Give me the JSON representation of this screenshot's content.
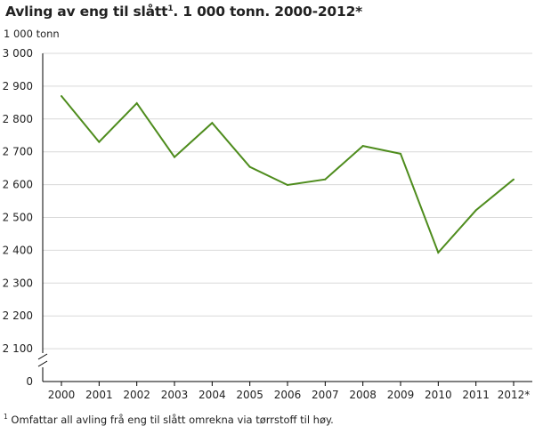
{
  "chart_data": {
    "type": "line",
    "title": "Avling av eng til slått",
    "title_sup": "1",
    "title_rest": ". 1 000 tonn. 2000-2012*",
    "ylabel": "1 000 tonn",
    "x": [
      "2000",
      "2001",
      "2002",
      "2003",
      "2004",
      "2005",
      "2006",
      "2007",
      "2008",
      "2009",
      "2010",
      "2011",
      "2012*"
    ],
    "series": [
      {
        "name": "",
        "values": [
          2870,
          2730,
          2848,
          2684,
          2788,
          2654,
          2599,
          2616,
          2718,
          2694,
          2393,
          2522,
          2616
        ],
        "color": "#4e8c1d"
      }
    ],
    "y_ticks": [
      "3 000",
      "2 900",
      "2 800",
      "2 700",
      "2 600",
      "2 500",
      "2 400",
      "2 300",
      "2 200",
      "2 100",
      "0"
    ],
    "y_tick_values": [
      3000,
      2900,
      2800,
      2700,
      2600,
      2500,
      2400,
      2300,
      2200,
      2100,
      0
    ],
    "ylim": [
      2000,
      3000
    ],
    "axis_break": true,
    "grid": true,
    "footnote_sup": "1",
    "footnote": " Omfattar all avling frå eng til slått omrekna via tørrstoff til høy."
  }
}
